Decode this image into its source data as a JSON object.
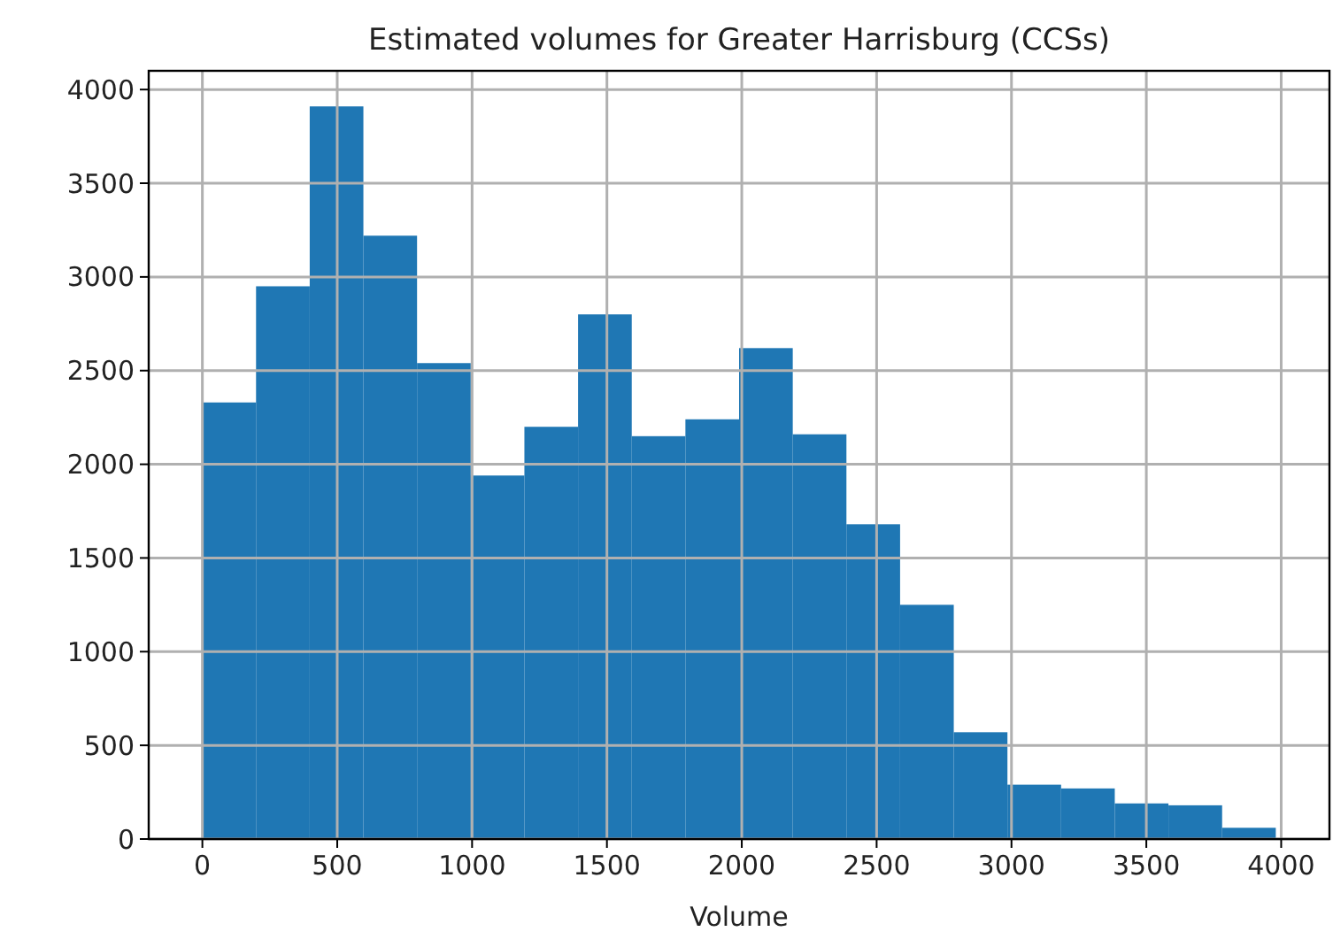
{
  "chart_data": {
    "type": "histogram",
    "title": "Estimated volumes for Greater Harrisburg (CCSs)",
    "xlabel": "Volume",
    "bins": [
      0,
      199,
      398,
      597,
      796,
      995,
      1194,
      1393,
      1592,
      1791,
      1990,
      2189,
      2388,
      2587,
      2786,
      2985,
      3184,
      3383,
      3582,
      3781,
      3980
    ],
    "values": [
      2330,
      2950,
      3910,
      3220,
      2540,
      1940,
      2200,
      2800,
      2150,
      2240,
      2620,
      2160,
      1680,
      1250,
      570,
      290,
      270,
      190,
      180,
      60
    ],
    "color": "#1f77b4",
    "xlim": [
      -199,
      4179
    ],
    "ylim": [
      0,
      4100
    ],
    "xticks": [
      0,
      500,
      1000,
      1500,
      2000,
      2500,
      3000,
      3500,
      4000
    ],
    "yticks": [
      0,
      500,
      1000,
      1500,
      2000,
      2500,
      3000,
      3500,
      4000
    ],
    "grid": true
  }
}
